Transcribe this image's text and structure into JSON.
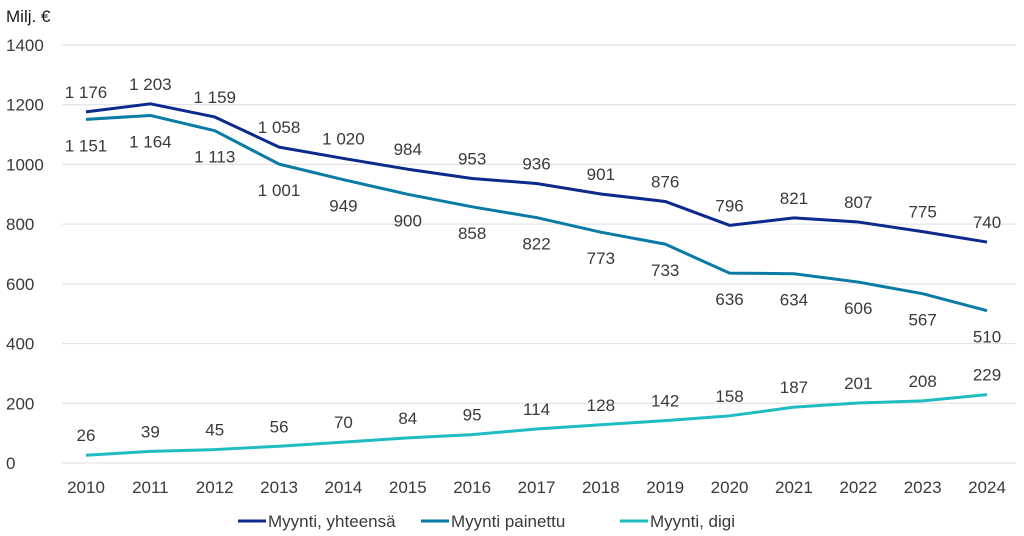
{
  "chart_data": {
    "type": "line",
    "title": "",
    "ylabel": "Milj. €",
    "xlabel": "",
    "ylim": [
      0,
      1400
    ],
    "yticks": [
      0,
      200,
      400,
      600,
      800,
      1000,
      1200,
      1400
    ],
    "ytick_labels": [
      "0",
      "200",
      "400",
      "600",
      "800",
      "1000",
      "1200",
      "1400"
    ],
    "grid": true,
    "legend_position": "bottom",
    "x": [
      "2010",
      "2011",
      "2012",
      "2013",
      "2014",
      "2015",
      "2016",
      "2017",
      "2018",
      "2019",
      "2020",
      "2021",
      "2022",
      "2023",
      "2024"
    ],
    "series": [
      {
        "name": "Myynti, yhteensä",
        "color": "#0b2a8c",
        "label_position": "above",
        "values": [
          1176,
          1203,
          1159,
          1058,
          1020,
          984,
          953,
          936,
          901,
          876,
          796,
          821,
          807,
          775,
          740
        ],
        "labels": [
          "1 176",
          "1 203",
          "1 159",
          "1 058",
          "1 020",
          "984",
          "953",
          "936",
          "901",
          "876",
          "796",
          "821",
          "807",
          "775",
          "740"
        ]
      },
      {
        "name": "Myynti painettu",
        "color": "#0a7ba6",
        "label_position": "below",
        "values": [
          1151,
          1164,
          1113,
          1001,
          949,
          900,
          858,
          822,
          773,
          733,
          636,
          634,
          606,
          567,
          510
        ],
        "labels": [
          "1 151",
          "1 164",
          "1 113",
          "1 001",
          "949",
          "900",
          "858",
          "822",
          "773",
          "733",
          "636",
          "634",
          "606",
          "567",
          "510"
        ]
      },
      {
        "name": "Myynti, digi",
        "color": "#1fbcc2",
        "label_position": "above",
        "values": [
          26,
          39,
          45,
          56,
          70,
          84,
          95,
          114,
          128,
          142,
          158,
          187,
          201,
          208,
          229
        ],
        "labels": [
          "26",
          "39",
          "45",
          "56",
          "70",
          "84",
          "95",
          "114",
          "128",
          "142",
          "158",
          "187",
          "201",
          "208",
          "229"
        ]
      }
    ]
  }
}
